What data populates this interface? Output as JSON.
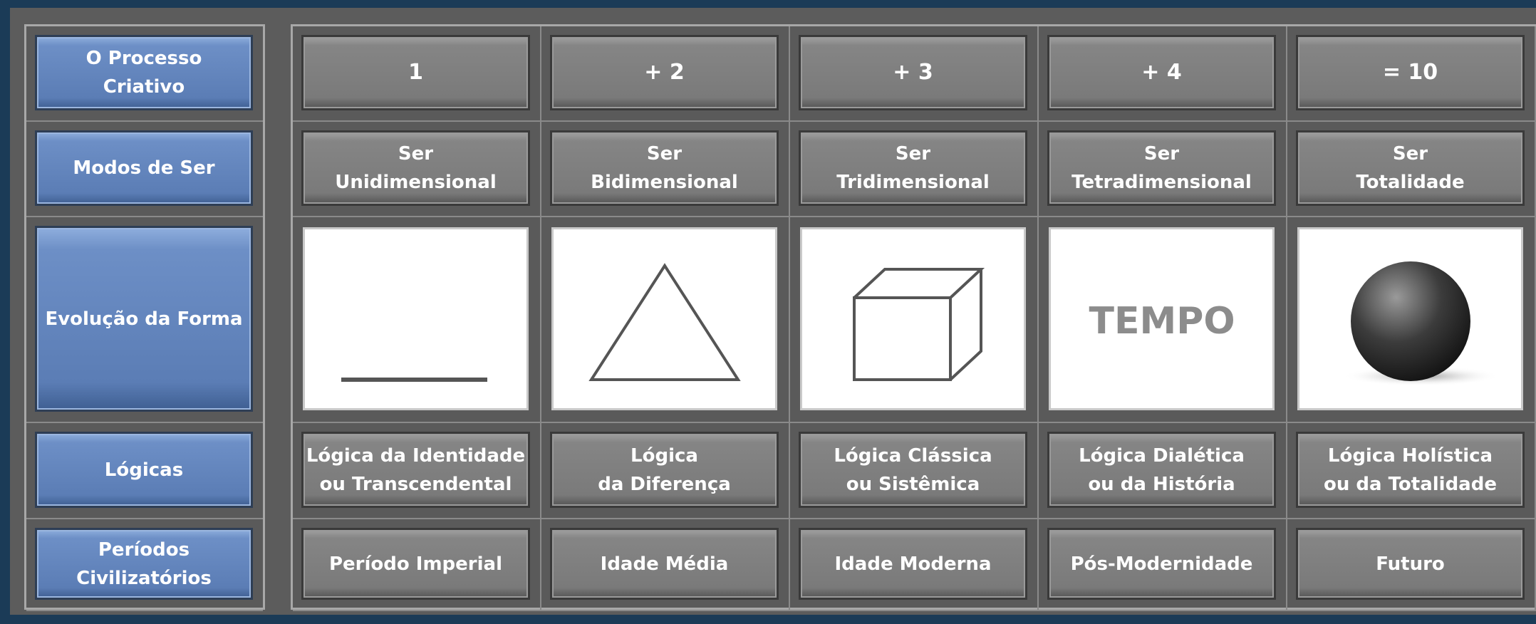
{
  "row_headers": [
    "O Processo\nCriativo",
    "Modos de Ser",
    "Evolução  da Forma",
    "Lógicas",
    "Períodos\nCivilizatórios"
  ],
  "columns": [
    "1",
    "+ 2",
    "+ 3",
    "+ 4",
    "= 10"
  ],
  "modes": [
    "Ser\nUnidimensional",
    "Ser\nBidimensional",
    "Ser\nTridimensional",
    "Ser\nTetradimensional",
    "Ser\nTotalidade"
  ],
  "forms": {
    "tempo_label": "TEMPO"
  },
  "logics": [
    "Lógica da Identidade\nou Transcendental",
    "Lógica\nda Diferença",
    "Lógica Clássica\nou Sistêmica",
    "Lógica Dialética\nou da História",
    "Lógica Holística\nou da Totalidade"
  ],
  "periods": [
    "Período Imperial",
    "Idade Média",
    "Idade Moderna",
    "Pós-Modernidade",
    "Futuro"
  ]
}
